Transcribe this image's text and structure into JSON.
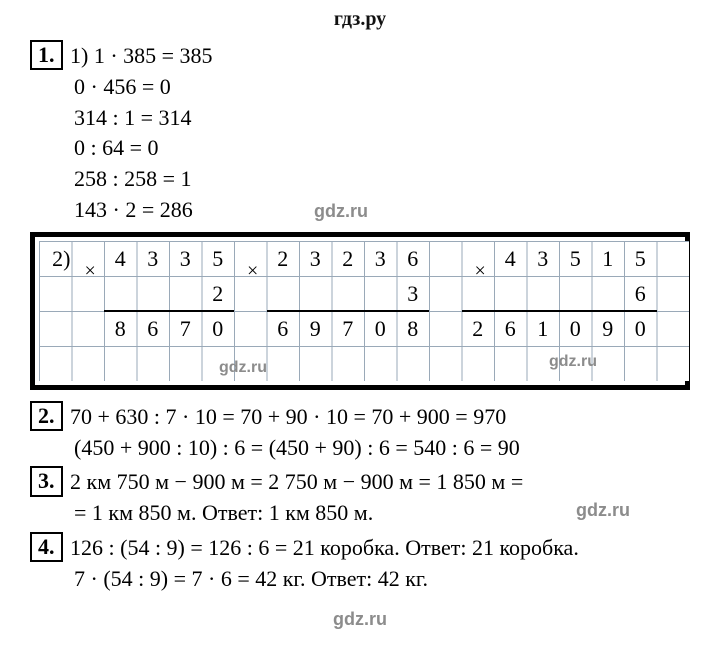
{
  "page_bg": "#ffffff",
  "text_color": "#000000",
  "grid_line_color": "#9aa9b8",
  "watermark_color": "#8c8c8c",
  "border_color": "#000000",
  "site_title": "гдз.ру",
  "watermark_text": "gdz.ru",
  "problem1": {
    "num": "1.",
    "part1_label": "1)",
    "lines": [
      "1 · 385 = 385",
      "0 · 456 = 0",
      "314 : 1 = 314",
      "0 : 64 = 0",
      "258 : 258 = 1",
      "143 · 2 = 286"
    ],
    "part2_label": "2)",
    "long_mult": [
      {
        "top": [
          "4",
          "3",
          "3",
          "5"
        ],
        "factor": "2",
        "result": [
          "8",
          "6",
          "7",
          "0"
        ],
        "col_start": 2,
        "factor_col": 5,
        "underline_cols": [
          2,
          6
        ],
        "result_start": 2
      },
      {
        "top": [
          "2",
          "3",
          "2",
          "3",
          "6"
        ],
        "factor": "3",
        "result": [
          "6",
          "9",
          "7",
          "0",
          "8"
        ],
        "col_start": 7,
        "factor_col": 11,
        "underline_cols": [
          7,
          12
        ],
        "result_start": 7
      },
      {
        "top": [
          "4",
          "3",
          "5",
          "1",
          "5"
        ],
        "factor": "6",
        "result": [
          "2",
          "6",
          "1",
          "0",
          "9",
          "0"
        ],
        "col_start": 14,
        "factor_col": 18,
        "underline_cols": [
          13,
          19
        ],
        "result_start": 13
      }
    ],
    "grid_cell_w": 32.5,
    "grid_cell_h": 35,
    "grid_cols": 20,
    "grid_rows": 4
  },
  "problem2": {
    "num": "2.",
    "lines": [
      "70 + 630 : 7 · 10 = 70 + 90 · 10 = 70 + 900 = 970",
      "(450 + 900 : 10) : 6 = (450 + 90) : 6 = 540 : 6 = 90"
    ]
  },
  "problem3": {
    "num": "3.",
    "line1": "2 км 750 м − 900 м = 2 750 м − 900 м = 1 850 м =",
    "line2": "= 1 км 850 м. Ответ: 1 км 850 м."
  },
  "problem4": {
    "num": "4.",
    "line1": "126 : (54 : 9) = 126 : 6 = 21 коробка. Ответ: 21 коробка.",
    "line2": "7 · (54 : 9) = 7 · 6 = 42 кг. Ответ: 42 кг."
  }
}
